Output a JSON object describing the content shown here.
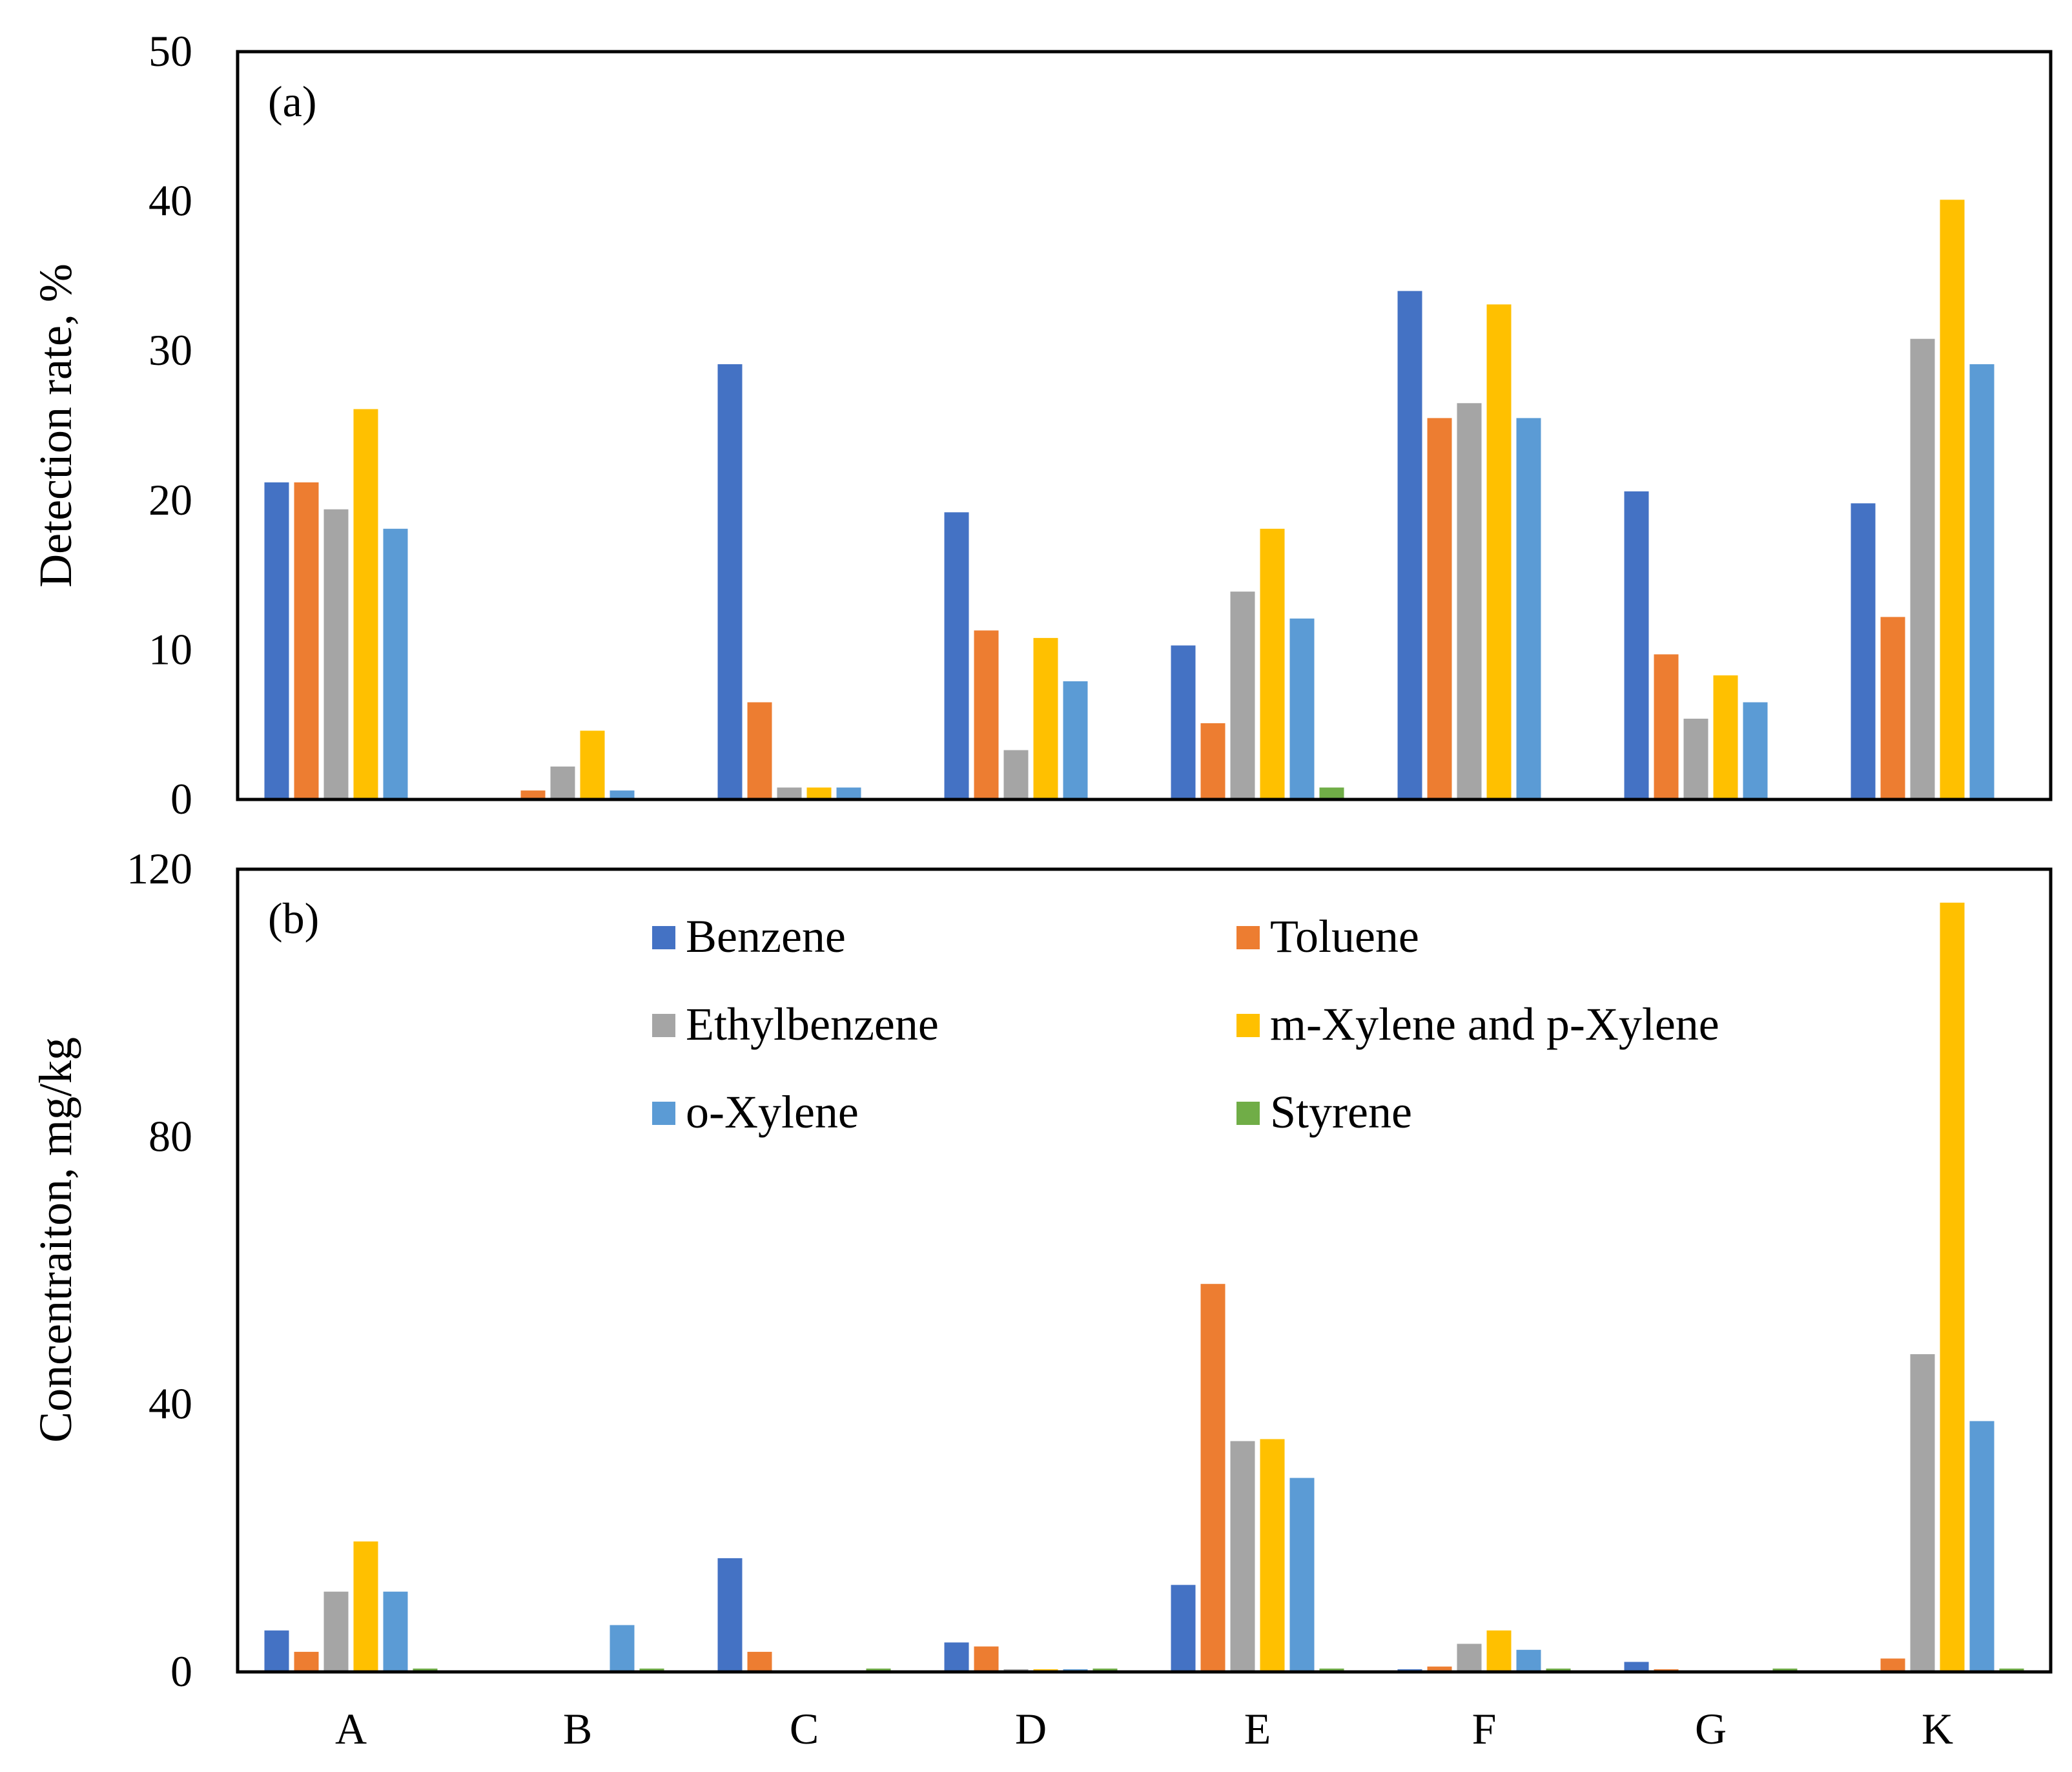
{
  "chart_data": [
    {
      "type": "bar",
      "panel": "(a)",
      "ylabel": "Detection rate, %",
      "xlabel": "",
      "ylim": [
        0,
        50
      ],
      "yticks": [
        0,
        10,
        20,
        30,
        40,
        50
      ],
      "categories": [
        "A",
        "B",
        "C",
        "D",
        "E",
        "F",
        "G",
        "K"
      ],
      "series": [
        {
          "name": "Benzene",
          "color": "#4472C4",
          "values": [
            21.2,
            0,
            29.1,
            19.2,
            10.3,
            34,
            20.6,
            19.8
          ]
        },
        {
          "name": "Toluene",
          "color": "#ED7D31",
          "values": [
            21.2,
            0.6,
            6.5,
            11.3,
            5.1,
            25.5,
            9.7,
            12.2
          ]
        },
        {
          "name": "Ethylbenzene",
          "color": "#A5A5A5",
          "values": [
            19.4,
            2.2,
            0.8,
            3.3,
            13.9,
            26.5,
            5.4,
            30.8
          ]
        },
        {
          "name": "m-Xylene and p-Xylene",
          "color": "#FFC000",
          "values": [
            26.1,
            4.6,
            0.8,
            10.8,
            18.1,
            33.1,
            8.3,
            40.1
          ]
        },
        {
          "name": "o-Xylene",
          "color": "#5B9BD5",
          "values": [
            18.1,
            0.6,
            0.8,
            7.9,
            12.1,
            25.5,
            6.5,
            29.1
          ]
        },
        {
          "name": "Styrene",
          "color": "#70AD47",
          "values": [
            0,
            0,
            0,
            0,
            0.8,
            0,
            0,
            0
          ]
        }
      ]
    },
    {
      "type": "bar",
      "panel": "(b)",
      "ylabel": "Concentraiton,  mg/kg",
      "xlabel": "",
      "ylim": [
        0,
        120
      ],
      "yticks": [
        0,
        40,
        80,
        120
      ],
      "categories": [
        "A",
        "B",
        "C",
        "D",
        "E",
        "F",
        "G",
        "K"
      ],
      "series": [
        {
          "name": "Benzene",
          "color": "#4472C4",
          "values": [
            6.2,
            0,
            17,
            4.4,
            13,
            0.4,
            1.5,
            0
          ]
        },
        {
          "name": "Toluene",
          "color": "#ED7D31",
          "values": [
            3,
            0,
            3,
            3.8,
            58,
            0.8,
            0.4,
            2
          ]
        },
        {
          "name": "Ethylbenzene",
          "color": "#A5A5A5",
          "values": [
            12,
            0,
            0,
            0.4,
            34.5,
            4.2,
            0,
            47.5
          ]
        },
        {
          "name": "m-Xylene and p-Xylene",
          "color": "#FFC000",
          "values": [
            19.5,
            0,
            0,
            0.4,
            34.8,
            6.2,
            0,
            115
          ]
        },
        {
          "name": "o-Xylene",
          "color": "#5B9BD5",
          "values": [
            12,
            7,
            0,
            0.4,
            29,
            3.3,
            0,
            37.5
          ]
        },
        {
          "name": "Styrene",
          "color": "#70AD47",
          "values": [
            0.5,
            0.5,
            0.5,
            0.5,
            0.5,
            0.5,
            0.5,
            0.5
          ]
        }
      ]
    }
  ],
  "legend": {
    "placement": "top-center of panel (b)",
    "entries": [
      {
        "label": "Benzene",
        "color": "#4472C4"
      },
      {
        "label": "Toluene",
        "color": "#ED7D31"
      },
      {
        "label": "Ethylbenzene",
        "color": "#A5A5A5"
      },
      {
        "label": "m-Xylene and p-Xylene",
        "color": "#FFC000"
      },
      {
        "label": "o-Xylene",
        "color": "#5B9BD5"
      },
      {
        "label": "Styrene",
        "color": "#70AD47"
      }
    ]
  }
}
